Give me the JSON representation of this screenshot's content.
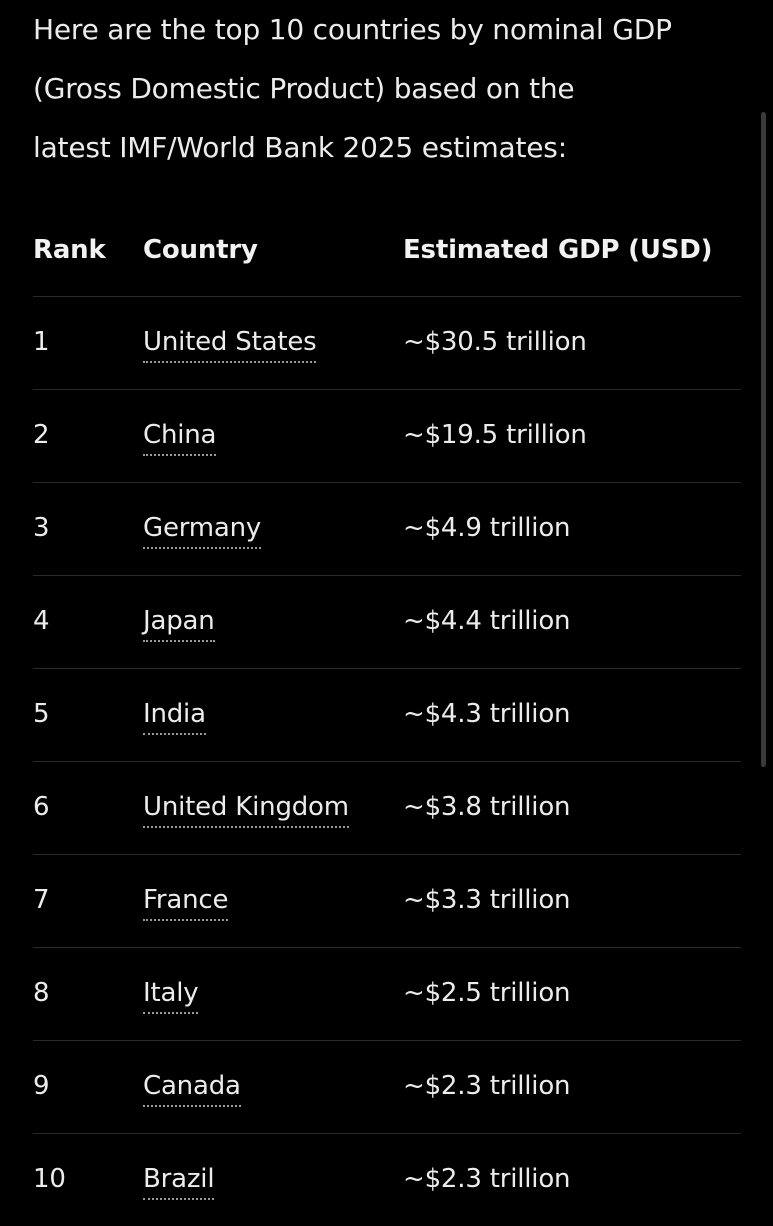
{
  "intro": {
    "line1": "Here are the top 10 countries by nominal GDP",
    "line2": "(Gross Domestic Product) based on the",
    "line3": "latest IMF/World Bank 2025 estimates:"
  },
  "table": {
    "headers": {
      "rank": "Rank",
      "country": "Country",
      "gdp": "Estimated GDP (USD)"
    },
    "rows": [
      {
        "rank": "1",
        "country": "United States",
        "gdp": "~$30.5 trillion"
      },
      {
        "rank": "2",
        "country": "China",
        "gdp": "~$19.5 trillion"
      },
      {
        "rank": "3",
        "country": "Germany",
        "gdp": "~$4.9 trillion"
      },
      {
        "rank": "4",
        "country": "Japan",
        "gdp": "~$4.4 trillion"
      },
      {
        "rank": "5",
        "country": "India",
        "gdp": "~$4.3 trillion"
      },
      {
        "rank": "6",
        "country": "United Kingdom",
        "gdp": "~$3.8 trillion"
      },
      {
        "rank": "7",
        "country": "France",
        "gdp": "~$3.3 trillion"
      },
      {
        "rank": "8",
        "country": "Italy",
        "gdp": "~$2.5 trillion"
      },
      {
        "rank": "9",
        "country": "Canada",
        "gdp": "~$2.3 trillion"
      },
      {
        "rank": "10",
        "country": "Brazil",
        "gdp": "~$2.3 trillion"
      }
    ]
  },
  "colors": {
    "background": "#000000",
    "text": "#ececec",
    "divider": "#2a2a2a",
    "link_underline": "#9a9a9a"
  }
}
